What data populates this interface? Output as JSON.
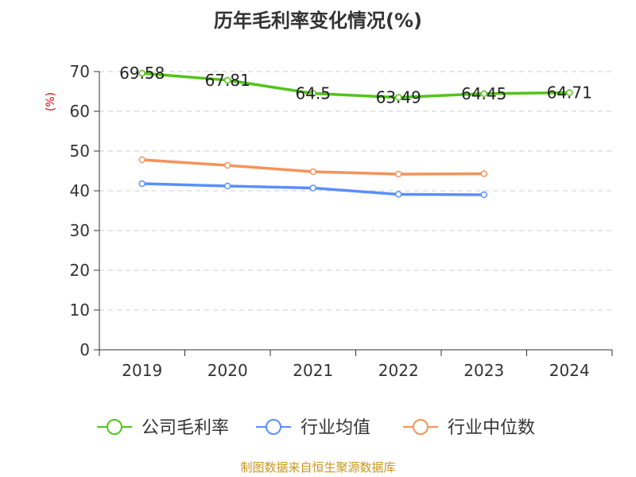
{
  "chart_data": {
    "type": "line",
    "title": "历年毛利率变化情况(%)",
    "ylabel": "(%)",
    "xlabel": "",
    "categories": [
      "2019",
      "2020",
      "2021",
      "2022",
      "2023",
      "2024"
    ],
    "ylim": [
      0,
      70
    ],
    "yticks": [
      0,
      10,
      20,
      30,
      40,
      50,
      60,
      70
    ],
    "grid": true,
    "legend_position": "bottom",
    "series": [
      {
        "name": "公司毛利率",
        "color": "#52c41a",
        "values": [
          69.58,
          67.81,
          64.5,
          63.49,
          64.45,
          64.71
        ],
        "labels": [
          "69.58",
          "67.81",
          "64.5",
          "63.49",
          "64.45",
          "64.71"
        ]
      },
      {
        "name": "行业均值",
        "color": "#5b8ff9",
        "values": [
          41.8,
          41.2,
          40.7,
          39.1,
          39.0,
          null
        ]
      },
      {
        "name": "行业中位数",
        "color": "#f6925a",
        "values": [
          47.8,
          46.4,
          44.8,
          44.2,
          44.3,
          null
        ]
      }
    ]
  },
  "footer": {
    "source": "制图数据来自恒生聚源数据库"
  }
}
